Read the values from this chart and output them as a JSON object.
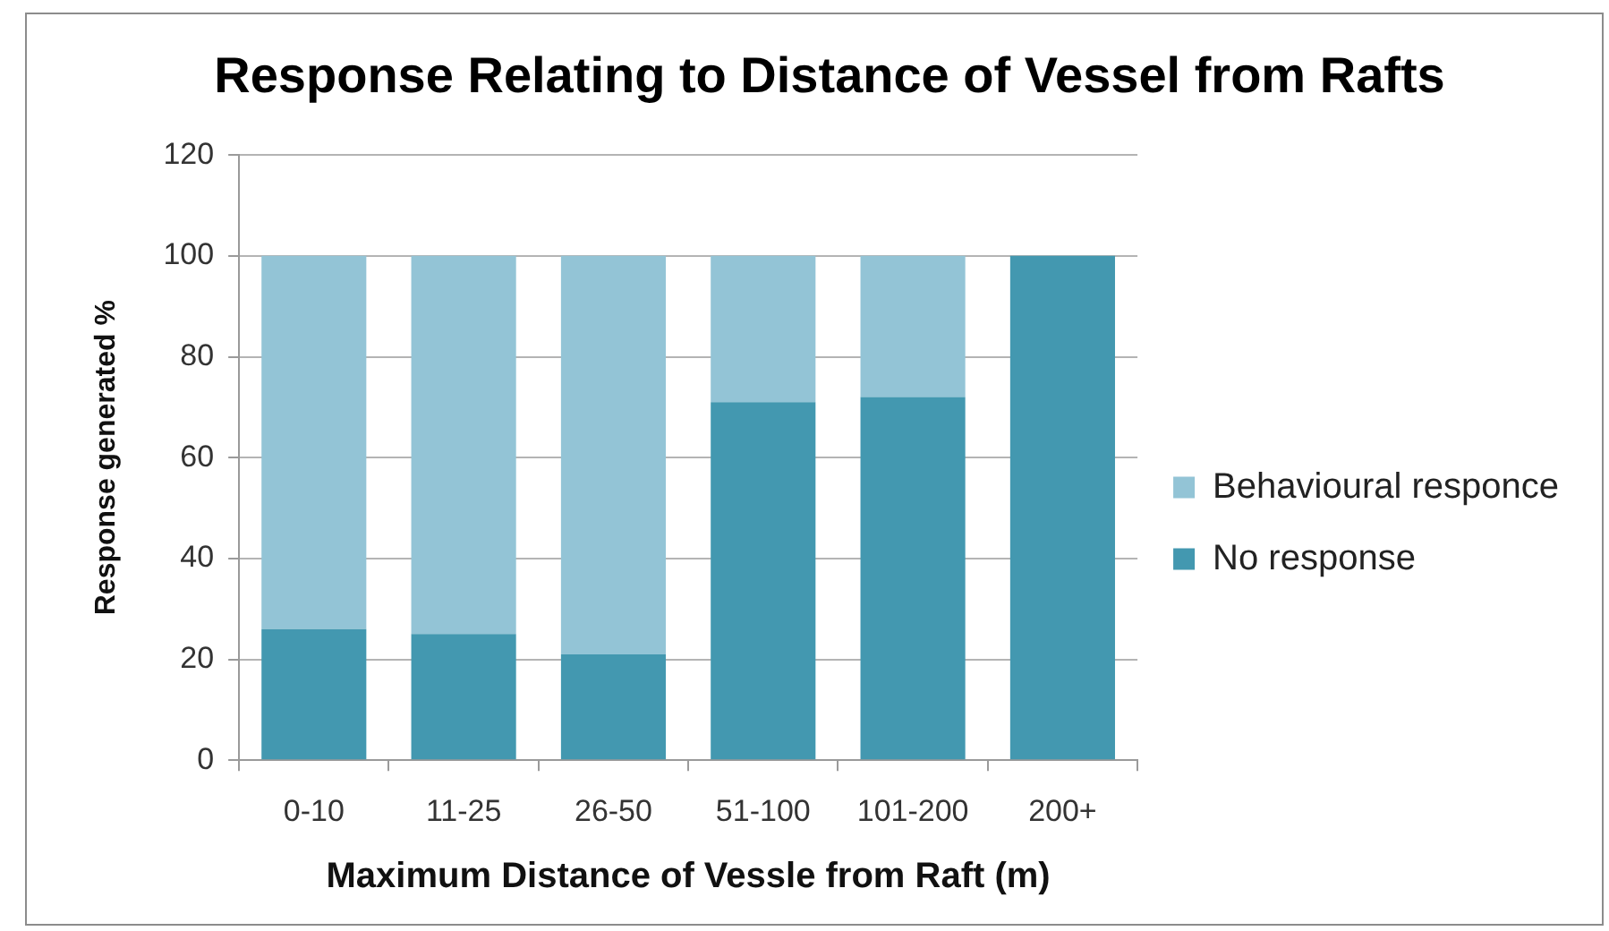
{
  "chart_data": {
    "type": "bar",
    "title": "Response Relating to Distance of Vessel from Rafts",
    "xlabel": "Maximum Distance of Vessle from Raft (m)",
    "ylabel": "Response generated %",
    "categories": [
      "0-10",
      "11-25",
      "26-50",
      "51-100",
      "101-200",
      "200+"
    ],
    "series": [
      {
        "name": "No response",
        "color": "#4398b0",
        "values": [
          26,
          25,
          21,
          71,
          72,
          100
        ]
      },
      {
        "name": "Behavioural responce",
        "color": "#93c4d6",
        "values": [
          74,
          75,
          79,
          29,
          28,
          0
        ]
      }
    ],
    "stacked": true,
    "ylim": [
      0,
      120
    ],
    "yticks": [
      0,
      20,
      40,
      60,
      80,
      100,
      120
    ],
    "grid": "y",
    "legend": "right"
  }
}
